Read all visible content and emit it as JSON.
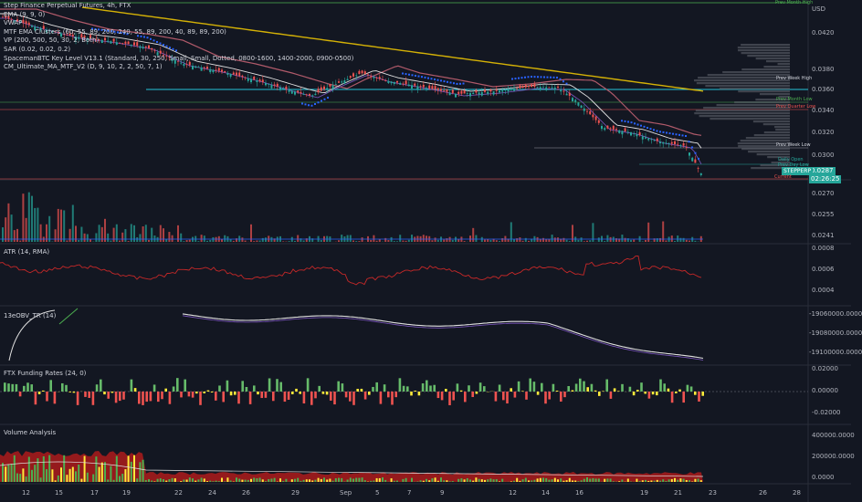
{
  "legend": [
    "Step Finance Perpetual Futures, 4h, FTX",
    "EMA (9, 9, 0)",
    "VWAP",
    "MTF EMA Clusters (60, 55, 89, 200, 240, 55, 89, 200, 40, 89, 89, 200)",
    "VP (200, 500, 50, 30, 2, Both)",
    "SAR (0.02, 0.02, 0.2)",
    "SpacemanBTC Key Level V13.1 (Standard, 30, 250, Small, Small, Dotted, 0800-1600, 1400-2000, 0900-0500)",
    "CM_Ultimate_MA_MTF_V2 (D, 9, 10, 2, 2, 50, 7, 1)"
  ],
  "currency": "USD",
  "price_axis": [
    "0.0420",
    "0.0380",
    "0.0360",
    "0.0340",
    "0.0320",
    "0.0300",
    "0.0270",
    "0.0255",
    "0.0241"
  ],
  "last_price": "0.0287",
  "countdown": "02:26:25",
  "ticker_tag": "STEPPERP",
  "key_levels": {
    "prev_week_high": "Prev Week High",
    "prev_month_low": "Prev Month Low",
    "prev_quarter_low": "Prev Quarter Low",
    "prev_week_low": "Prev Week Low",
    "daily_open": "Daily Open",
    "prev_day_low": "Prev Day Low",
    "current": "Current",
    "prev_month_high": "Prev Month High"
  },
  "atr": {
    "title": "ATR (14, RMA)",
    "axis": [
      "0.0008",
      "0.0006",
      "0.0004"
    ]
  },
  "obv": {
    "title": "13eOBV_TR (14)",
    "axis": [
      "-19060000.0000",
      "-19080000.0000",
      "-19100000.0000"
    ]
  },
  "funding": {
    "title": "FTX Funding Rates (24, 0)",
    "axis": [
      "0.02000",
      "0.00000",
      "-0.02000"
    ]
  },
  "volume": {
    "title": "Volume Analysis",
    "axis": [
      "400000.0000",
      "200000.0000",
      "0.0000"
    ]
  },
  "dates": [
    "12",
    "15",
    "17",
    "19",
    "22",
    "24",
    "26",
    "29",
    "Sep",
    "5",
    "7",
    "9",
    "12",
    "14",
    "16",
    "19",
    "21",
    "23",
    "26",
    "28"
  ]
}
